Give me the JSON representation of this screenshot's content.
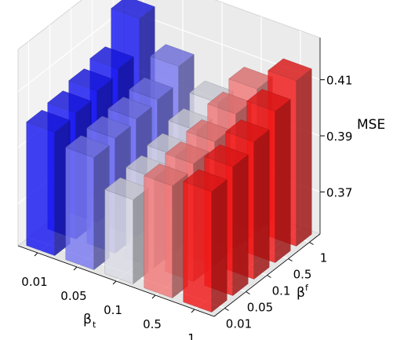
{
  "chart_data": {
    "type": "bar3d",
    "xlabel": "β",
    "xlabel_sub": "t",
    "ylabel": "β",
    "ylabel_sub": "f",
    "zlabel": "MSE",
    "x_ticks": [
      "0.01",
      "0.05",
      "0.1",
      "0.5",
      "1"
    ],
    "y_ticks": [
      "0.01",
      "0.05",
      "0.1",
      "0.5",
      "1"
    ],
    "z_ticks": [
      "0.37",
      "0.39",
      "0.41"
    ],
    "z_tick_values": [
      0.37,
      0.39,
      0.41
    ],
    "zlim": [
      0.355,
      0.425
    ],
    "grid": true,
    "colormap": "bwr",
    "values": [
      [
        0.399,
        0.4,
        0.402,
        0.404,
        0.416
      ],
      [
        0.395,
        0.396,
        0.397,
        0.398,
        0.404
      ],
      [
        0.385,
        0.387,
        0.389,
        0.392,
        0.396
      ],
      [
        0.395,
        0.397,
        0.399,
        0.403,
        0.406
      ],
      [
        0.398,
        0.401,
        0.404,
        0.409,
        0.414
      ]
    ],
    "colors": [
      "#1a1aff",
      "#8080ff",
      "#e8e8f2",
      "#ff8080",
      "#ff1a1a"
    ]
  }
}
